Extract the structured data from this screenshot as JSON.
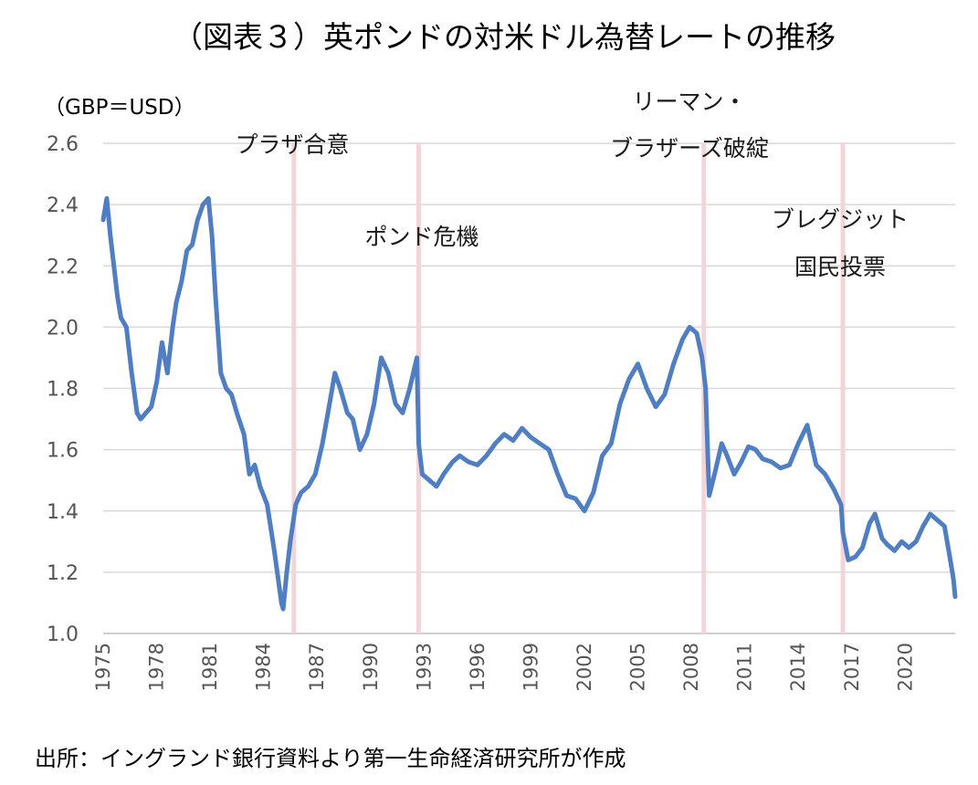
{
  "chart_data": {
    "type": "line",
    "title": "（図表３）英ポンドの対米ドル為替レートの推移",
    "ylabel": "（GBP＝USD）",
    "xlabel": "",
    "source": "出所：イングランド銀行資料より第一生命経済研究所が作成",
    "ylim": [
      1.0,
      2.6
    ],
    "yticks": [
      "1.0",
      "1.2",
      "1.4",
      "1.6",
      "1.8",
      "2.0",
      "2.2",
      "2.4",
      "2.6"
    ],
    "xlim": [
      1975.0,
      2022.8
    ],
    "xticks": [
      "1975",
      "1978",
      "1981",
      "1984",
      "1987",
      "1990",
      "1993",
      "1996",
      "1999",
      "2002",
      "2005",
      "2008",
      "2011",
      "2014",
      "2017",
      "2020"
    ],
    "grid": "horizontal",
    "line_color": "#4f7ec2",
    "event_color": "#f2d5d8",
    "events": [
      {
        "x": 1985.7,
        "label": [
          "プラザ合意"
        ]
      },
      {
        "x": 1992.7,
        "label": [
          "ポンド危機"
        ]
      },
      {
        "x": 2008.7,
        "label": [
          "リーマン・",
          "ブラザーズ破綻"
        ]
      },
      {
        "x": 2016.5,
        "label": [
          "ブレグジット",
          "国民投票"
        ]
      }
    ],
    "series": [
      {
        "x": [
          1975.0,
          1975.2,
          1975.4,
          1975.6,
          1975.8,
          1976.0,
          1976.3,
          1976.6,
          1976.9,
          1977.1,
          1977.4,
          1977.7,
          1978.0,
          1978.3,
          1978.6,
          1978.9,
          1979.1,
          1979.4,
          1979.7,
          1980.0,
          1980.3,
          1980.6,
          1980.9,
          1981.1,
          1981.3,
          1981.6,
          1981.9,
          1982.2,
          1982.5,
          1982.9,
          1983.2,
          1983.5,
          1983.8,
          1984.2,
          1984.6,
          1985.0,
          1985.1,
          1985.3,
          1985.5,
          1985.8,
          1986.1,
          1986.5,
          1986.9,
          1987.3,
          1987.7,
          1988.0,
          1988.3,
          1988.7,
          1989.0,
          1989.4,
          1989.8,
          1990.2,
          1990.6,
          1991.0,
          1991.4,
          1991.8,
          1992.2,
          1992.6,
          1992.7,
          1992.9,
          1993.3,
          1993.7,
          1994.1,
          1994.6,
          1995.0,
          1995.5,
          1996.0,
          1996.5,
          1997.0,
          1997.5,
          1998.0,
          1998.5,
          1999.0,
          1999.5,
          2000.0,
          2000.5,
          2001.0,
          2001.5,
          2002.0,
          2002.5,
          2003.0,
          2003.5,
          2004.0,
          2004.5,
          2005.0,
          2005.5,
          2006.0,
          2006.5,
          2007.0,
          2007.5,
          2007.9,
          2008.3,
          2008.6,
          2008.8,
          2009.0,
          2009.3,
          2009.7,
          2010.0,
          2010.4,
          2010.8,
          2011.2,
          2011.6,
          2012.0,
          2012.5,
          2013.0,
          2013.5,
          2014.0,
          2014.5,
          2015.0,
          2015.5,
          2016.0,
          2016.4,
          2016.5,
          2016.8,
          2017.2,
          2017.6,
          2018.0,
          2018.3,
          2018.7,
          2019.0,
          2019.4,
          2019.8,
          2020.2,
          2020.6,
          2021.0,
          2021.4,
          2021.8,
          2022.2,
          2022.5,
          2022.7,
          2022.8
        ],
        "y": [
          2.35,
          2.42,
          2.3,
          2.2,
          2.1,
          2.03,
          2.0,
          1.85,
          1.72,
          1.7,
          1.72,
          1.74,
          1.82,
          1.95,
          1.85,
          2.0,
          2.08,
          2.15,
          2.25,
          2.27,
          2.35,
          2.4,
          2.42,
          2.3,
          2.1,
          1.85,
          1.8,
          1.78,
          1.72,
          1.65,
          1.52,
          1.55,
          1.48,
          1.42,
          1.27,
          1.1,
          1.08,
          1.2,
          1.3,
          1.42,
          1.46,
          1.48,
          1.52,
          1.62,
          1.75,
          1.85,
          1.8,
          1.72,
          1.7,
          1.6,
          1.65,
          1.75,
          1.9,
          1.85,
          1.75,
          1.72,
          1.8,
          1.9,
          1.62,
          1.52,
          1.5,
          1.48,
          1.52,
          1.56,
          1.58,
          1.56,
          1.55,
          1.58,
          1.62,
          1.65,
          1.63,
          1.67,
          1.64,
          1.62,
          1.6,
          1.52,
          1.45,
          1.44,
          1.4,
          1.46,
          1.58,
          1.62,
          1.75,
          1.83,
          1.88,
          1.8,
          1.74,
          1.78,
          1.88,
          1.96,
          2.0,
          1.98,
          1.9,
          1.8,
          1.45,
          1.52,
          1.62,
          1.58,
          1.52,
          1.56,
          1.61,
          1.6,
          1.57,
          1.56,
          1.54,
          1.55,
          1.62,
          1.68,
          1.55,
          1.52,
          1.47,
          1.42,
          1.33,
          1.24,
          1.25,
          1.28,
          1.36,
          1.39,
          1.31,
          1.29,
          1.27,
          1.3,
          1.28,
          1.3,
          1.35,
          1.39,
          1.37,
          1.35,
          1.25,
          1.18,
          1.12
        ]
      }
    ]
  }
}
